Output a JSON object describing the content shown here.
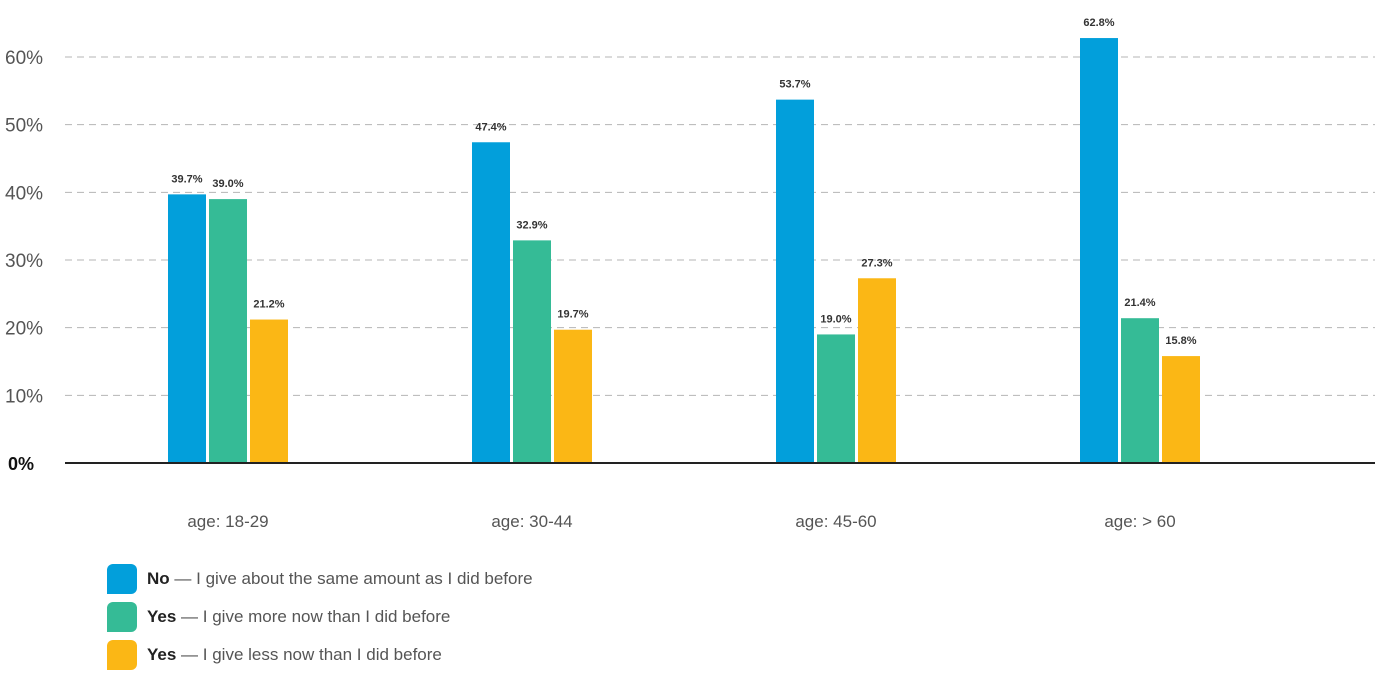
{
  "chart_data": {
    "type": "bar",
    "title": "",
    "xlabel": "",
    "ylabel": "",
    "ylim": [
      0,
      60
    ],
    "yticks": [
      {
        "value": 0,
        "label": "0%"
      },
      {
        "value": 10,
        "label": "10%"
      },
      {
        "value": 20,
        "label": "20%"
      },
      {
        "value": 30,
        "label": "30%"
      },
      {
        "value": 40,
        "label": "40%"
      },
      {
        "value": 50,
        "label": "50%"
      },
      {
        "value": 60,
        "label": "60%"
      }
    ],
    "grid": true,
    "legend_position": "bottom-left",
    "categories": [
      "age: 18-29",
      "age: 30-44",
      "age: 45-60",
      "age: > 60"
    ],
    "series": [
      {
        "name_bold": "No",
        "name_dash": "—",
        "name": "I give about the same amount as I did before",
        "color": "#029fdb",
        "values": [
          39.7,
          47.4,
          53.7,
          62.8
        ],
        "labels": [
          "39.7%",
          "47.4%",
          "53.7%",
          "62.8%"
        ]
      },
      {
        "name_bold": "Yes",
        "name_dash": "—",
        "name": "I give more now than I did before",
        "color": "#35bb96",
        "values": [
          39.0,
          32.9,
          19.0,
          21.4
        ],
        "labels": [
          "39.0%",
          "32.9%",
          "19.0%",
          "21.4%"
        ]
      },
      {
        "name_bold": "Yes",
        "name_dash": "—",
        "name": "I give less now than I did before",
        "color": "#fbb715",
        "values": [
          21.2,
          19.7,
          27.3,
          15.8
        ],
        "labels": [
          "21.2%",
          "19.7%",
          "27.3%",
          "15.8%"
        ]
      }
    ]
  }
}
